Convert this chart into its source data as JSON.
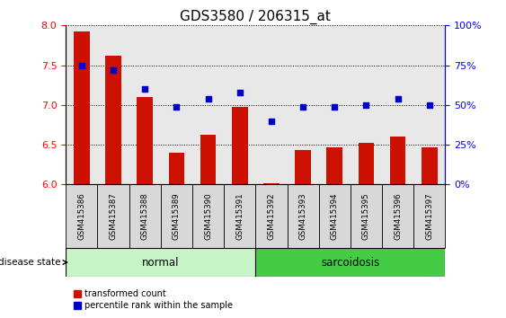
{
  "title": "GDS3580 / 206315_at",
  "samples": [
    "GSM415386",
    "GSM415387",
    "GSM415388",
    "GSM415389",
    "GSM415390",
    "GSM415391",
    "GSM415392",
    "GSM415393",
    "GSM415394",
    "GSM415395",
    "GSM415396",
    "GSM415397"
  ],
  "transformed_count": [
    7.92,
    7.62,
    7.1,
    6.4,
    6.63,
    6.97,
    6.02,
    6.43,
    6.47,
    6.52,
    6.6,
    6.47
  ],
  "percentile_rank_pct": [
    75,
    72,
    60,
    49,
    54,
    58,
    40,
    49,
    49,
    50,
    54,
    50
  ],
  "groups": [
    "normal",
    "normal",
    "normal",
    "normal",
    "normal",
    "normal",
    "sarcoidosis",
    "sarcoidosis",
    "sarcoidosis",
    "sarcoidosis",
    "sarcoidosis",
    "sarcoidosis"
  ],
  "normal_color": "#c8f5c8",
  "sarcoidosis_color": "#44cc44",
  "bar_color": "#cc1100",
  "dot_color": "#0000cc",
  "ylim_left": [
    6.0,
    8.0
  ],
  "ylim_right": [
    0,
    100
  ],
  "yticks_left": [
    6.0,
    6.5,
    7.0,
    7.5,
    8.0
  ],
  "yticks_right": [
    0,
    25,
    50,
    75,
    100
  ],
  "plot_bg_color": "#e8e8e8",
  "bg_color": "#ffffff",
  "title_fontsize": 11,
  "tick_fontsize": 8,
  "label_fontsize": 7.5
}
